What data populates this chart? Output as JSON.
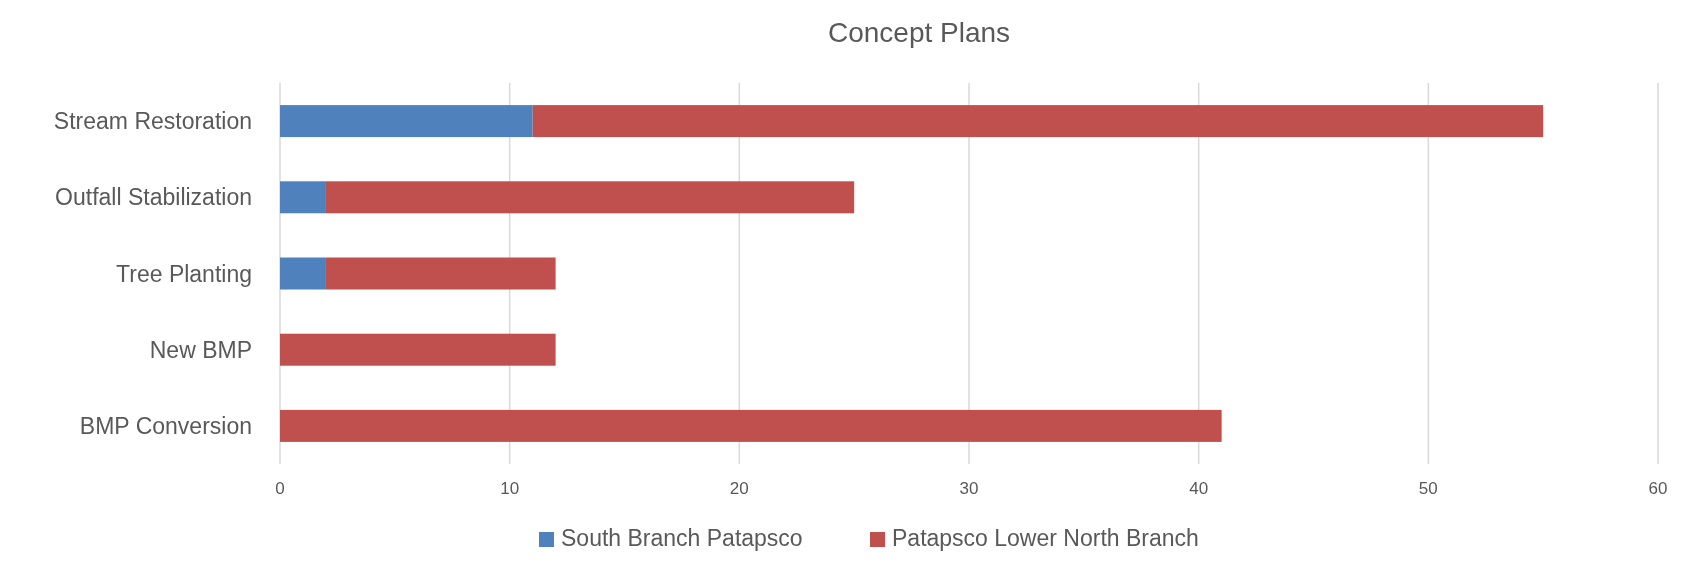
{
  "chart_data": {
    "type": "bar",
    "title": "Concept Plans",
    "orientation": "horizontal",
    "stacked": true,
    "categories": [
      "Stream Restoration",
      "Outfall Stabilization",
      "Tree Planting",
      "New BMP",
      "BMP Conversion"
    ],
    "series": [
      {
        "name": "South Branch Patapsco",
        "color": "#4f81bd",
        "values": [
          11,
          2,
          2,
          0,
          0
        ]
      },
      {
        "name": "Patapsco Lower North Branch",
        "color": "#c0504d",
        "values": [
          44,
          23,
          10,
          12,
          41
        ]
      }
    ],
    "xlim": [
      0,
      60
    ],
    "xticks": [
      0,
      10,
      20,
      30,
      40,
      50,
      60
    ],
    "grid": "x",
    "legend": "bottom"
  }
}
